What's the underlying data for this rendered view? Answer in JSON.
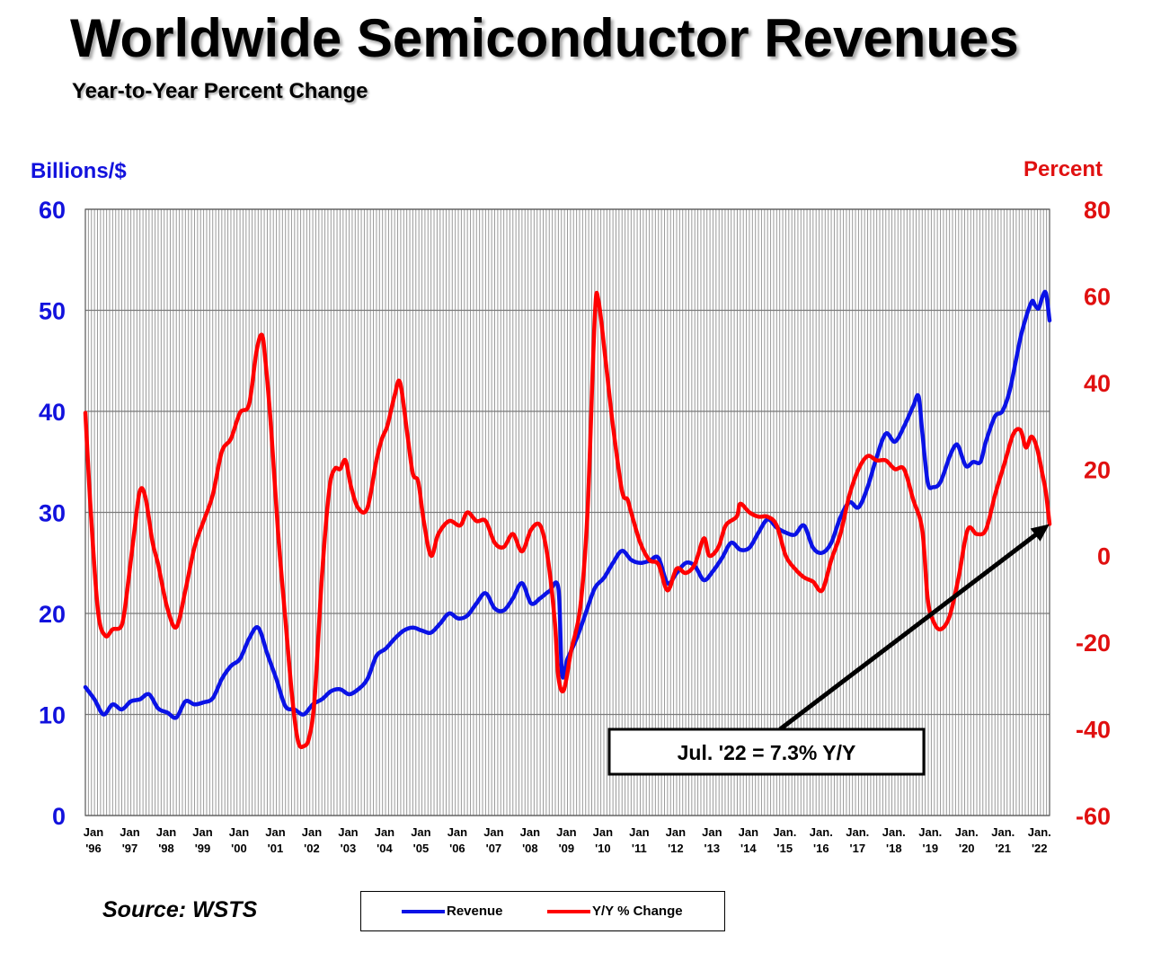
{
  "title": "Worldwide Semiconductor Revenues",
  "subtitle": "Year-to-Year Percent Change",
  "source": "Source: WSTS",
  "colors": {
    "revenue": "#0a12e6",
    "yy": "#ff0000",
    "grid": "#9a9a9a",
    "axis_left": "#1212dd",
    "axis_right": "#e01010"
  },
  "chart_data": {
    "type": "line",
    "title": "Worldwide Semiconductor Revenues",
    "subtitle": "Year-to-Year Percent Change",
    "y_left": {
      "label": "Billions/$",
      "range": [
        0,
        60
      ],
      "ticks": [
        0,
        10,
        20,
        30,
        40,
        50,
        60
      ]
    },
    "y_right": {
      "label": "Percent",
      "range": [
        -60,
        80
      ],
      "ticks": [
        -60,
        -40,
        -20,
        0,
        20,
        40,
        60,
        80
      ]
    },
    "x_range": [
      1996.0,
      2022.5
    ],
    "x_ticks": [
      {
        "year": 1996,
        "top": "Jan",
        "bottom": "'96"
      },
      {
        "year": 1997,
        "top": "Jan",
        "bottom": "'97"
      },
      {
        "year": 1998,
        "top": "Jan",
        "bottom": "'98"
      },
      {
        "year": 1999,
        "top": "Jan",
        "bottom": "'99"
      },
      {
        "year": 2000,
        "top": "Jan",
        "bottom": "'00"
      },
      {
        "year": 2001,
        "top": "Jan",
        "bottom": "'01"
      },
      {
        "year": 2002,
        "top": "Jan",
        "bottom": "'02"
      },
      {
        "year": 2003,
        "top": "Jan",
        "bottom": "'03"
      },
      {
        "year": 2004,
        "top": "Jan",
        "bottom": "'04"
      },
      {
        "year": 2005,
        "top": "Jan",
        "bottom": "'05"
      },
      {
        "year": 2006,
        "top": "Jan",
        "bottom": "'06"
      },
      {
        "year": 2007,
        "top": "Jan",
        "bottom": "'07"
      },
      {
        "year": 2008,
        "top": "Jan",
        "bottom": "'08"
      },
      {
        "year": 2009,
        "top": "Jan",
        "bottom": "'09"
      },
      {
        "year": 2010,
        "top": "Jan",
        "bottom": "'10"
      },
      {
        "year": 2011,
        "top": "Jan",
        "bottom": "'11"
      },
      {
        "year": 2012,
        "top": "Jan",
        "bottom": "'12"
      },
      {
        "year": 2013,
        "top": "Jan",
        "bottom": "'13"
      },
      {
        "year": 2014,
        "top": "Jan",
        "bottom": "'14"
      },
      {
        "year": 2015,
        "top": "Jan.",
        "bottom": "'15"
      },
      {
        "year": 2016,
        "top": "Jan.",
        "bottom": "'16"
      },
      {
        "year": 2017,
        "top": "Jan.",
        "bottom": "'17"
      },
      {
        "year": 2018,
        "top": "Jan.",
        "bottom": "'18"
      },
      {
        "year": 2019,
        "top": "Jan.",
        "bottom": "'19"
      },
      {
        "year": 2020,
        "top": "Jan.",
        "bottom": "'20"
      },
      {
        "year": 2021,
        "top": "Jan.",
        "bottom": "'21"
      },
      {
        "year": 2022,
        "top": "Jan.",
        "bottom": "'22"
      }
    ],
    "series": [
      {
        "name": "Revenue",
        "axis": "left",
        "points": [
          [
            1996.0,
            12.7
          ],
          [
            1996.25,
            11.5
          ],
          [
            1996.5,
            10.0
          ],
          [
            1996.75,
            11.0
          ],
          [
            1997.0,
            10.5
          ],
          [
            1997.25,
            11.3
          ],
          [
            1997.5,
            11.5
          ],
          [
            1997.75,
            12.0
          ],
          [
            1998.0,
            10.6
          ],
          [
            1998.25,
            10.2
          ],
          [
            1998.5,
            9.7
          ],
          [
            1998.75,
            11.3
          ],
          [
            1999.0,
            11.0
          ],
          [
            1999.25,
            11.2
          ],
          [
            1999.5,
            11.6
          ],
          [
            1999.75,
            13.5
          ],
          [
            2000.0,
            14.8
          ],
          [
            2000.25,
            15.5
          ],
          [
            2000.5,
            17.5
          ],
          [
            2000.75,
            18.6
          ],
          [
            2001.0,
            16.0
          ],
          [
            2001.25,
            13.5
          ],
          [
            2001.5,
            10.8
          ],
          [
            2001.75,
            10.5
          ],
          [
            2002.0,
            10.0
          ],
          [
            2002.25,
            11.0
          ],
          [
            2002.5,
            11.5
          ],
          [
            2002.75,
            12.3
          ],
          [
            2003.0,
            12.5
          ],
          [
            2003.25,
            12.0
          ],
          [
            2003.5,
            12.5
          ],
          [
            2003.75,
            13.5
          ],
          [
            2004.0,
            15.8
          ],
          [
            2004.25,
            16.5
          ],
          [
            2004.5,
            17.5
          ],
          [
            2004.75,
            18.3
          ],
          [
            2005.0,
            18.6
          ],
          [
            2005.25,
            18.3
          ],
          [
            2005.5,
            18.1
          ],
          [
            2005.75,
            19.0
          ],
          [
            2006.0,
            20.0
          ],
          [
            2006.25,
            19.5
          ],
          [
            2006.5,
            19.8
          ],
          [
            2006.75,
            21.0
          ],
          [
            2007.0,
            22.0
          ],
          [
            2007.25,
            20.5
          ],
          [
            2007.5,
            20.3
          ],
          [
            2007.75,
            21.5
          ],
          [
            2008.0,
            23.0
          ],
          [
            2008.25,
            21.0
          ],
          [
            2008.5,
            21.5
          ],
          [
            2008.75,
            22.2
          ],
          [
            2009.0,
            22.5
          ],
          [
            2009.1,
            14.0
          ],
          [
            2009.25,
            15.5
          ],
          [
            2009.5,
            17.5
          ],
          [
            2009.75,
            20.0
          ],
          [
            2010.0,
            22.5
          ],
          [
            2010.25,
            23.5
          ],
          [
            2010.5,
            25.0
          ],
          [
            2010.75,
            26.2
          ],
          [
            2011.0,
            25.3
          ],
          [
            2011.25,
            25.0
          ],
          [
            2011.5,
            25.2
          ],
          [
            2011.75,
            25.5
          ],
          [
            2012.0,
            23.0
          ],
          [
            2012.25,
            24.0
          ],
          [
            2012.5,
            25.0
          ],
          [
            2012.75,
            24.7
          ],
          [
            2013.0,
            23.3
          ],
          [
            2013.25,
            24.2
          ],
          [
            2013.5,
            25.5
          ],
          [
            2013.75,
            27.0
          ],
          [
            2014.0,
            26.3
          ],
          [
            2014.25,
            26.5
          ],
          [
            2014.5,
            28.0
          ],
          [
            2014.75,
            29.3
          ],
          [
            2015.0,
            28.5
          ],
          [
            2015.25,
            28.0
          ],
          [
            2015.5,
            27.8
          ],
          [
            2015.75,
            28.7
          ],
          [
            2016.0,
            26.5
          ],
          [
            2016.25,
            26.0
          ],
          [
            2016.5,
            27.0
          ],
          [
            2016.75,
            29.5
          ],
          [
            2017.0,
            31.0
          ],
          [
            2017.25,
            30.5
          ],
          [
            2017.5,
            32.5
          ],
          [
            2017.75,
            35.5
          ],
          [
            2018.0,
            37.8
          ],
          [
            2018.25,
            37.0
          ],
          [
            2018.5,
            38.5
          ],
          [
            2018.75,
            40.5
          ],
          [
            2018.9,
            41.5
          ],
          [
            2019.0,
            38.0
          ],
          [
            2019.15,
            33.0
          ],
          [
            2019.3,
            32.5
          ],
          [
            2019.5,
            33.0
          ],
          [
            2019.75,
            35.5
          ],
          [
            2019.9,
            36.6
          ],
          [
            2020.0,
            36.5
          ],
          [
            2020.2,
            34.6
          ],
          [
            2020.4,
            35.0
          ],
          [
            2020.6,
            35.0
          ],
          [
            2020.75,
            37.0
          ],
          [
            2021.0,
            39.5
          ],
          [
            2021.2,
            40.0
          ],
          [
            2021.4,
            42.0
          ],
          [
            2021.6,
            45.5
          ],
          [
            2021.75,
            48.0
          ],
          [
            2022.0,
            50.8
          ],
          [
            2022.1,
            50.5
          ],
          [
            2022.2,
            50.2
          ],
          [
            2022.3,
            51.3
          ],
          [
            2022.4,
            51.7
          ],
          [
            2022.5,
            49.0
          ]
        ]
      },
      {
        "name": "Y/Y % Change",
        "axis": "right",
        "points": [
          [
            1996.0,
            33.0
          ],
          [
            1996.15,
            10.0
          ],
          [
            1996.35,
            -13.0
          ],
          [
            1996.55,
            -18.5
          ],
          [
            1996.75,
            -17.0
          ],
          [
            1997.0,
            -16.0
          ],
          [
            1997.15,
            -8.0
          ],
          [
            1997.35,
            6.0
          ],
          [
            1997.5,
            15.0
          ],
          [
            1997.65,
            13.5
          ],
          [
            1997.85,
            3.0
          ],
          [
            1998.0,
            -2.0
          ],
          [
            1998.25,
            -12.0
          ],
          [
            1998.5,
            -16.5
          ],
          [
            1998.75,
            -8.0
          ],
          [
            1999.0,
            2.0
          ],
          [
            1999.25,
            8.0
          ],
          [
            1999.5,
            14.0
          ],
          [
            1999.75,
            24.0
          ],
          [
            2000.0,
            27.0
          ],
          [
            2000.25,
            33.0
          ],
          [
            2000.5,
            35.0
          ],
          [
            2000.7,
            47.0
          ],
          [
            2000.85,
            51.0
          ],
          [
            2000.95,
            45.0
          ],
          [
            2001.1,
            30.0
          ],
          [
            2001.3,
            5.0
          ],
          [
            2001.5,
            -15.0
          ],
          [
            2001.7,
            -34.0
          ],
          [
            2001.85,
            -43.0
          ],
          [
            2002.0,
            -44.0
          ],
          [
            2002.15,
            -42.0
          ],
          [
            2002.3,
            -33.0
          ],
          [
            2002.5,
            -5.0
          ],
          [
            2002.7,
            15.0
          ],
          [
            2002.85,
            20.0
          ],
          [
            2003.0,
            20.0
          ],
          [
            2003.15,
            22.0
          ],
          [
            2003.3,
            16.0
          ],
          [
            2003.5,
            11.0
          ],
          [
            2003.75,
            11.0
          ],
          [
            2004.0,
            22.0
          ],
          [
            2004.15,
            27.0
          ],
          [
            2004.3,
            30.0
          ],
          [
            2004.5,
            37.0
          ],
          [
            2004.65,
            40.0
          ],
          [
            2004.85,
            28.0
          ],
          [
            2005.0,
            19.0
          ],
          [
            2005.15,
            17.0
          ],
          [
            2005.3,
            8.0
          ],
          [
            2005.5,
            0.0
          ],
          [
            2005.7,
            5.0
          ],
          [
            2006.0,
            8.0
          ],
          [
            2006.3,
            7.0
          ],
          [
            2006.5,
            10.0
          ],
          [
            2006.75,
            8.0
          ],
          [
            2007.0,
            8.0
          ],
          [
            2007.25,
            3.0
          ],
          [
            2007.5,
            2.0
          ],
          [
            2007.75,
            5.0
          ],
          [
            2008.0,
            1.0
          ],
          [
            2008.25,
            6.0
          ],
          [
            2008.5,
            7.0
          ],
          [
            2008.7,
            0.0
          ],
          [
            2008.9,
            -15.0
          ],
          [
            2009.0,
            -28.0
          ],
          [
            2009.15,
            -31.0
          ],
          [
            2009.35,
            -22.0
          ],
          [
            2009.6,
            -12.0
          ],
          [
            2009.8,
            10.0
          ],
          [
            2010.0,
            55.0
          ],
          [
            2010.1,
            59.0
          ],
          [
            2010.3,
            45.0
          ],
          [
            2010.5,
            30.0
          ],
          [
            2010.75,
            15.0
          ],
          [
            2010.9,
            13.0
          ],
          [
            2011.0,
            10.0
          ],
          [
            2011.25,
            3.0
          ],
          [
            2011.5,
            -1.0
          ],
          [
            2011.75,
            -2.0
          ],
          [
            2012.0,
            -8.0
          ],
          [
            2012.25,
            -3.0
          ],
          [
            2012.5,
            -4.0
          ],
          [
            2012.75,
            -2.0
          ],
          [
            2013.0,
            4.0
          ],
          [
            2013.15,
            0.0
          ],
          [
            2013.4,
            2.0
          ],
          [
            2013.6,
            7.0
          ],
          [
            2013.9,
            9.0
          ],
          [
            2014.0,
            12.0
          ],
          [
            2014.25,
            10.0
          ],
          [
            2014.5,
            9.0
          ],
          [
            2014.75,
            9.0
          ],
          [
            2015.0,
            7.0
          ],
          [
            2015.25,
            0.0
          ],
          [
            2015.5,
            -3.0
          ],
          [
            2015.75,
            -5.0
          ],
          [
            2016.0,
            -6.0
          ],
          [
            2016.25,
            -8.0
          ],
          [
            2016.5,
            -1.0
          ],
          [
            2016.75,
            5.0
          ],
          [
            2017.0,
            14.0
          ],
          [
            2017.25,
            20.0
          ],
          [
            2017.5,
            23.0
          ],
          [
            2017.75,
            22.0
          ],
          [
            2018.0,
            22.0
          ],
          [
            2018.25,
            20.0
          ],
          [
            2018.5,
            20.0
          ],
          [
            2018.75,
            13.0
          ],
          [
            2019.0,
            6.0
          ],
          [
            2019.15,
            -10.0
          ],
          [
            2019.3,
            -15.0
          ],
          [
            2019.5,
            -17.0
          ],
          [
            2019.75,
            -14.0
          ],
          [
            2020.0,
            -5.0
          ],
          [
            2020.25,
            6.0
          ],
          [
            2020.5,
            5.0
          ],
          [
            2020.75,
            6.0
          ],
          [
            2021.0,
            14.0
          ],
          [
            2021.25,
            21.0
          ],
          [
            2021.5,
            28.0
          ],
          [
            2021.7,
            29.0
          ],
          [
            2021.85,
            25.0
          ],
          [
            2022.0,
            27.5
          ],
          [
            2022.15,
            25.0
          ],
          [
            2022.3,
            19.0
          ],
          [
            2022.4,
            14.5
          ],
          [
            2022.5,
            7.3
          ]
        ]
      }
    ],
    "annotation": {
      "text": "Jul. '22 = 7.3% Y/Y",
      "x": 2022.5,
      "y": 7.3,
      "axis": "right"
    }
  },
  "legend": [
    {
      "label": "Revenue",
      "color": "#0a12e6"
    },
    {
      "label": "Y/Y % Change",
      "color": "#ff0000"
    }
  ]
}
